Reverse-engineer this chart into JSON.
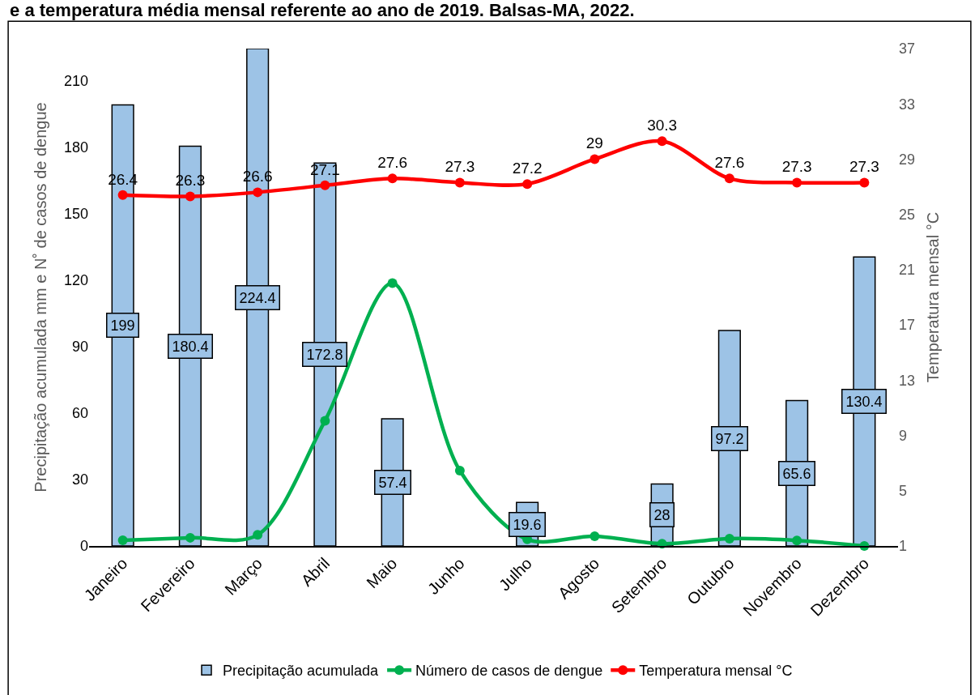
{
  "chart_data": {
    "type": "bar",
    "title": "e a temperatura média mensal referente ao ano de 2019. Balsas-MA, 2022.",
    "categories": [
      "Janeiro",
      "Fevereiro",
      "Março",
      "Abril",
      "Maio",
      "Junho",
      "Julho",
      "Agosto",
      "Setembro",
      "Outubro",
      "Novembro",
      "Dezembro"
    ],
    "series": [
      {
        "name": "Precipitação acumulada",
        "color": "#9dc3e6",
        "values": [
          199,
          180.4,
          224.4,
          172.8,
          57.4,
          null,
          19.6,
          null,
          28,
          97.2,
          65.6,
          130.4
        ],
        "data_labels": true
      },
      {
        "name": "Número de casos de dengue",
        "type": "line",
        "color": "#00b050",
        "values": [
          2.6,
          3.7,
          5,
          56.5,
          118.6,
          34,
          3,
          4.4,
          1,
          3.3,
          2.5,
          0
        ]
      },
      {
        "name": "Temperatura mensal °C",
        "type": "line",
        "axis": "y2",
        "color": "#ff0000",
        "values": [
          26.4,
          26.3,
          26.6,
          27.1,
          27.6,
          27.3,
          27.2,
          29,
          30.3,
          27.6,
          27.3,
          27.3
        ],
        "data_labels": true
      }
    ],
    "ylabel": "Precipitação acumulada mm e N˚ de casos de dengue",
    "y2label": "Temperatura mensal °C",
    "ylim": [
      0,
      224.4
    ],
    "yticks": [
      0,
      30,
      60,
      90,
      120,
      150,
      180,
      210
    ],
    "y2lim": [
      1,
      37
    ],
    "y2ticks": [
      1,
      5,
      9,
      13,
      17,
      21,
      25,
      29,
      33,
      37
    ],
    "marker": "circle",
    "line_style": "solid",
    "legend": "bottom"
  }
}
